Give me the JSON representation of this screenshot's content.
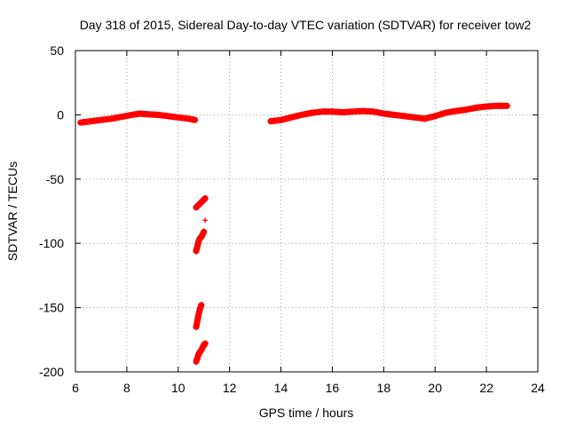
{
  "chart_data": {
    "type": "scatter",
    "title": "Day 318 of 2015, Sidereal Day-to-day VTEC variation (SDTVAR) for receiver tow2",
    "xlabel": "GPS time / hours",
    "ylabel": "SDTVAR / TECUs",
    "xlim": [
      6,
      24
    ],
    "ylim": [
      -200,
      50
    ],
    "x_ticks": [
      6,
      8,
      10,
      12,
      14,
      16,
      18,
      20,
      22,
      24
    ],
    "y_ticks": [
      50,
      0,
      -50,
      -100,
      -150,
      -200
    ],
    "grid": true,
    "marker": "+",
    "color": "#ff0000",
    "series": [
      {
        "name": "main-morning",
        "points": [
          [
            6.2,
            -6
          ],
          [
            6.6,
            -5
          ],
          [
            7.0,
            -4
          ],
          [
            7.4,
            -3
          ],
          [
            7.8,
            -1.5
          ],
          [
            8.2,
            0
          ],
          [
            8.5,
            1
          ],
          [
            8.8,
            0.5
          ],
          [
            9.2,
            0
          ],
          [
            9.6,
            -1
          ],
          [
            10.0,
            -2
          ],
          [
            10.4,
            -3
          ],
          [
            10.65,
            -4
          ]
        ]
      },
      {
        "name": "main-afternoon",
        "points": [
          [
            13.6,
            -5
          ],
          [
            14.0,
            -4
          ],
          [
            14.4,
            -2
          ],
          [
            14.8,
            0
          ],
          [
            15.2,
            1.5
          ],
          [
            15.6,
            2.5
          ],
          [
            16.0,
            2.5
          ],
          [
            16.4,
            2
          ],
          [
            16.8,
            2.5
          ],
          [
            17.2,
            3
          ],
          [
            17.6,
            2.5
          ],
          [
            18.0,
            1
          ],
          [
            18.4,
            0
          ],
          [
            18.8,
            -1
          ],
          [
            19.2,
            -2
          ],
          [
            19.6,
            -3
          ],
          [
            20.0,
            -1
          ],
          [
            20.4,
            1.5
          ],
          [
            20.8,
            3
          ],
          [
            21.2,
            4
          ],
          [
            21.6,
            5.5
          ],
          [
            22.0,
            6.5
          ],
          [
            22.4,
            7
          ],
          [
            22.8,
            7
          ]
        ]
      },
      {
        "name": "outliers-a",
        "points": [
          [
            10.7,
            -72
          ],
          [
            10.8,
            -70
          ],
          [
            10.9,
            -68
          ],
          [
            11.0,
            -66
          ],
          [
            11.05,
            -65
          ]
        ]
      },
      {
        "name": "outliers-b",
        "points": [
          [
            10.7,
            -106
          ],
          [
            10.75,
            -102
          ],
          [
            10.8,
            -98
          ],
          [
            10.85,
            -96
          ],
          [
            10.9,
            -95
          ],
          [
            10.95,
            -93
          ],
          [
            11.0,
            -91
          ]
        ]
      },
      {
        "name": "outliers-c",
        "points": [
          [
            11.05,
            -82
          ]
        ]
      },
      {
        "name": "outliers-d",
        "points": [
          [
            10.7,
            -165
          ],
          [
            10.75,
            -160
          ],
          [
            10.8,
            -155
          ],
          [
            10.85,
            -151
          ],
          [
            10.9,
            -148
          ]
        ]
      },
      {
        "name": "outliers-e",
        "points": [
          [
            10.7,
            -192
          ],
          [
            10.75,
            -189
          ],
          [
            10.8,
            -186
          ],
          [
            10.9,
            -183
          ],
          [
            10.95,
            -181
          ],
          [
            11.0,
            -179
          ],
          [
            11.05,
            -178
          ]
        ]
      }
    ]
  }
}
